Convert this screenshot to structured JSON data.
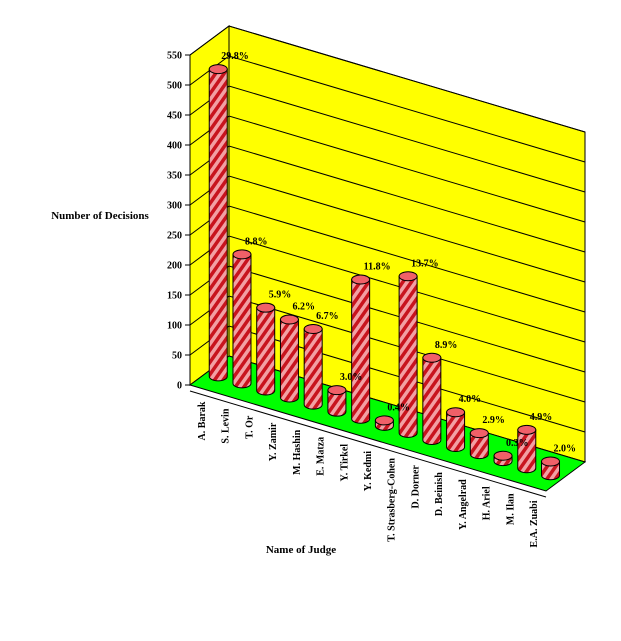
{
  "chart_data": {
    "type": "bar",
    "title": "",
    "xlabel": "Name of Judge",
    "ylabel": "Number of Decisions",
    "ylim": [
      0,
      550
    ],
    "yticks": [
      0,
      50,
      100,
      150,
      200,
      250,
      300,
      350,
      400,
      450,
      500,
      550
    ],
    "grid": true,
    "legend": "none",
    "categories": [
      "A. Barak",
      "S. Levin",
      "T. Or",
      "Y. Zamir",
      "M. Hashin",
      "E. Matza",
      "Y. Tirkel",
      "Y. Kedmi",
      "T. Strasberg-Cohen",
      "D. Dorner",
      "D. Beinish",
      "Y. Angelrad",
      "H. Ariel",
      "M. Ilan",
      "E.A. Zuabi"
    ],
    "values": [
      512,
      215,
      138,
      130,
      126,
      36,
      232,
      9,
      261,
      137,
      58,
      35,
      9,
      64,
      23
    ],
    "data_labels": [
      "29.8%",
      "8.8%",
      "5.9%",
      "6.2%",
      "6.7%",
      "3.0%",
      "11.8%",
      "0.4%",
      "13.7%",
      "8.9%",
      "4.0%",
      "2.9%",
      "0.3%",
      "4.9%",
      "2.0%"
    ],
    "colors": {
      "wall": "#ffff00",
      "floor": "#00ff00",
      "bar_stripe_a": "#c8141e",
      "bar_stripe_b": "#f2a0a4",
      "bar_top": "#f06068",
      "outline": "#000000"
    }
  }
}
